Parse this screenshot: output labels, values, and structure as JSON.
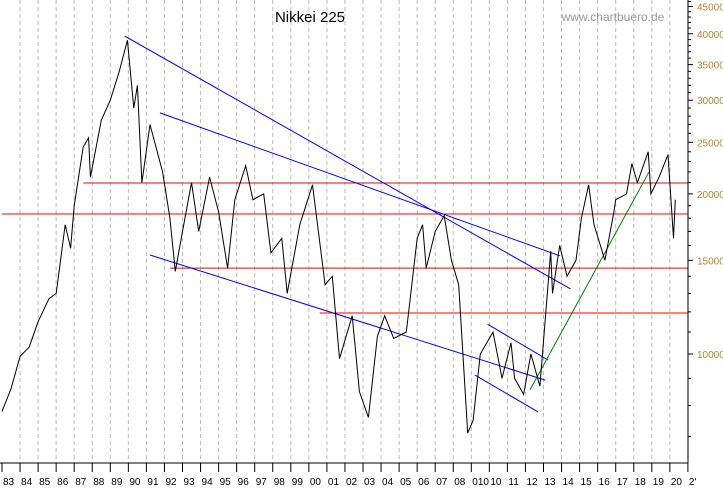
{
  "chart_data": {
    "type": "line",
    "title": "Nikkei 225",
    "watermark": "www.chartbuero.de",
    "y_scale": "log",
    "ylim": [
      6240,
      46000
    ],
    "xlim": [
      1983,
      2021.2
    ],
    "grid": "vertical dashed per year",
    "y_ticks": [
      45000,
      40000,
      35000,
      30000,
      25000,
      20000,
      15000,
      10000
    ],
    "x_tick_labels": [
      "83",
      "84",
      "85",
      "86",
      "87",
      "88",
      "89",
      "90",
      "91",
      "92",
      "93",
      "94",
      "95",
      "96",
      "97",
      "98",
      "99",
      "00",
      "01",
      "02",
      "03",
      "04",
      "05",
      "06",
      "07",
      "08",
      "010",
      "10",
      "11",
      "12",
      "13",
      "14",
      "15",
      "16",
      "17",
      "18",
      "19",
      "20",
      "2'"
    ],
    "series": [
      {
        "color": "#000000",
        "points": [
          [
            1983.0,
            7800
          ],
          [
            1983.5,
            8600
          ],
          [
            1984.0,
            9900
          ],
          [
            1984.5,
            10300
          ],
          [
            1985.0,
            11500
          ],
          [
            1985.6,
            12700
          ],
          [
            1986.0,
            13000
          ],
          [
            1986.5,
            17500
          ],
          [
            1986.8,
            15800
          ],
          [
            1987.0,
            19000
          ],
          [
            1987.5,
            24500
          ],
          [
            1987.8,
            25500
          ],
          [
            1987.9,
            21500
          ],
          [
            1988.5,
            27500
          ],
          [
            1989.0,
            30000
          ],
          [
            1989.5,
            34000
          ],
          [
            1989.95,
            38900
          ],
          [
            1990.3,
            29000
          ],
          [
            1990.5,
            32000
          ],
          [
            1990.75,
            21000
          ],
          [
            1991.2,
            27000
          ],
          [
            1991.9,
            22000
          ],
          [
            1992.3,
            18000
          ],
          [
            1992.6,
            14300
          ],
          [
            1993.0,
            17000
          ],
          [
            1993.5,
            21000
          ],
          [
            1993.9,
            17000
          ],
          [
            1994.5,
            21500
          ],
          [
            1995.0,
            18500
          ],
          [
            1995.5,
            14500
          ],
          [
            1995.9,
            19500
          ],
          [
            1996.5,
            22600
          ],
          [
            1996.9,
            19500
          ],
          [
            1997.5,
            20000
          ],
          [
            1997.9,
            15500
          ],
          [
            1998.5,
            16500
          ],
          [
            1998.8,
            13000
          ],
          [
            1999.5,
            17500
          ],
          [
            2000.2,
            20800
          ],
          [
            2000.9,
            13500
          ],
          [
            2001.3,
            14000
          ],
          [
            2001.7,
            9800
          ],
          [
            2002.4,
            11800
          ],
          [
            2002.8,
            8500
          ],
          [
            2003.3,
            7600
          ],
          [
            2003.8,
            10800
          ],
          [
            2004.2,
            11800
          ],
          [
            2004.7,
            10700
          ],
          [
            2005.4,
            11000
          ],
          [
            2006.0,
            16500
          ],
          [
            2006.3,
            17500
          ],
          [
            2006.5,
            14500
          ],
          [
            2007.0,
            17000
          ],
          [
            2007.5,
            18200
          ],
          [
            2007.9,
            15000
          ],
          [
            2008.3,
            13500
          ],
          [
            2008.8,
            7100
          ],
          [
            2009.1,
            7500
          ],
          [
            2009.5,
            10000
          ],
          [
            2010.2,
            11000
          ],
          [
            2010.7,
            9000
          ],
          [
            2011.2,
            10500
          ],
          [
            2011.4,
            9000
          ],
          [
            2011.9,
            8400
          ],
          [
            2012.3,
            10000
          ],
          [
            2012.8,
            8700
          ],
          [
            2013.4,
            15600
          ],
          [
            2013.5,
            13000
          ],
          [
            2013.9,
            16000
          ],
          [
            2014.3,
            14000
          ],
          [
            2014.8,
            15000
          ],
          [
            2015.1,
            18000
          ],
          [
            2015.5,
            20800
          ],
          [
            2015.8,
            17500
          ],
          [
            2016.4,
            15000
          ],
          [
            2016.9,
            18500
          ],
          [
            2017.0,
            19500
          ],
          [
            2017.6,
            20000
          ],
          [
            2017.9,
            22800
          ],
          [
            2018.2,
            21000
          ],
          [
            2018.8,
            24000
          ],
          [
            2018.95,
            20000
          ],
          [
            2019.4,
            21500
          ],
          [
            2019.9,
            23700
          ],
          [
            2020.2,
            16500
          ],
          [
            2020.3,
            19500
          ]
        ]
      }
    ],
    "trend_lines": [
      {
        "color": "#0000ff",
        "from": [
          1989.8,
          39600
        ],
        "to": [
          2014.5,
          13250
        ]
      },
      {
        "color": "#0000ff",
        "from": [
          1991.75,
          28400
        ],
        "to": [
          2013.9,
          15300
        ]
      },
      {
        "color": "#0000ff",
        "from": [
          1991.2,
          15350
        ],
        "to": [
          2013.1,
          8930
        ]
      },
      {
        "color": "#0000ff",
        "from": [
          2009.9,
          11380
        ],
        "to": [
          2013.25,
          9740
        ]
      },
      {
        "color": "#0000ff",
        "from": [
          2009.2,
          9130
        ],
        "to": [
          2012.7,
          7780
        ]
      },
      {
        "color": "#008000",
        "from": [
          2012.25,
          8560
        ],
        "to": [
          2018.9,
          22160
        ]
      }
    ],
    "horizontal_lines": [
      {
        "color": "#ff0000",
        "value": 20960,
        "from_year": 1987.5
      },
      {
        "color": "#ff0000",
        "value": 18330,
        "from_year": 1983
      },
      {
        "color": "#ff0000",
        "value": 14500,
        "from_year": 1992.3
      },
      {
        "color": "#ff0000",
        "value": 11940,
        "from_year": 2000.6
      }
    ]
  }
}
